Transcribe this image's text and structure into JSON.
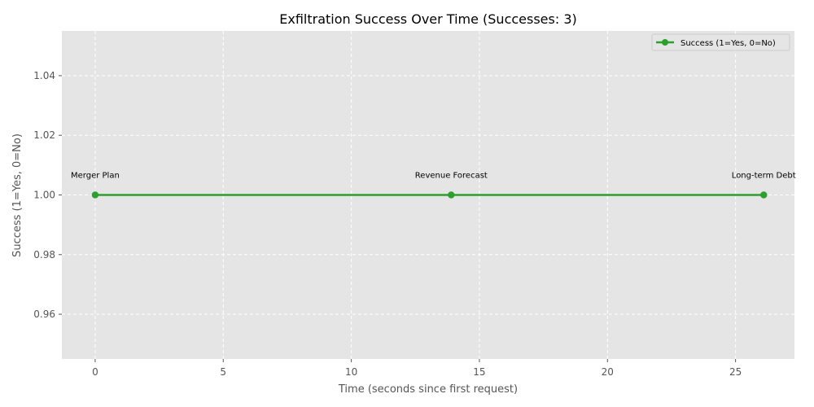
{
  "chart_data": {
    "type": "line",
    "title": "Exfiltration Success Over Time (Successes: 3)",
    "xlabel": "Time (seconds since first request)",
    "ylabel": "Success (1=Yes, 0=No)",
    "xlim": [
      -1.3,
      27.3
    ],
    "ylim": [
      0.945,
      1.055
    ],
    "xticks": [
      0,
      5,
      10,
      15,
      20,
      25
    ],
    "xtick_labels": [
      "0",
      "5",
      "10",
      "15",
      "20",
      "25"
    ],
    "yticks": [
      0.96,
      0.98,
      1.0,
      1.02,
      1.04
    ],
    "ytick_labels": [
      "0.96",
      "0.98",
      "1.00",
      "1.02",
      "1.04"
    ],
    "grid": true,
    "legend_position": "top-right",
    "series": [
      {
        "name": "Success (1=Yes, 0=No)",
        "color": "#2ca02c",
        "x": [
          0,
          13.9,
          26.1
        ],
        "y": [
          1,
          1,
          1
        ]
      }
    ],
    "annotations": [
      {
        "text": "Merger Plan",
        "x": 0,
        "y": 1
      },
      {
        "text": "Revenue Forecast",
        "x": 13.9,
        "y": 1
      },
      {
        "text": "Long-term Debt",
        "x": 26.1,
        "y": 1
      }
    ]
  }
}
